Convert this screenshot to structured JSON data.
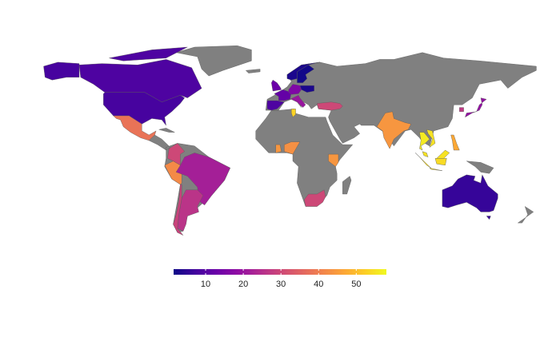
{
  "chart_data": {
    "type": "choropleth",
    "colorscale": "plasma",
    "missing_color": "#808080",
    "values": [
      9,
      8,
      38,
      30,
      42,
      22,
      26,
      29,
      13,
      12,
      9,
      16,
      20,
      3,
      2,
      3,
      30,
      53,
      43,
      44,
      44,
      30,
      44,
      56,
      55,
      55,
      54,
      47,
      19,
      27,
      6
    ],
    "clim": [
      1.5,
      58
    ],
    "cticks": [
      10,
      20,
      30,
      40,
      50
    ]
  }
}
